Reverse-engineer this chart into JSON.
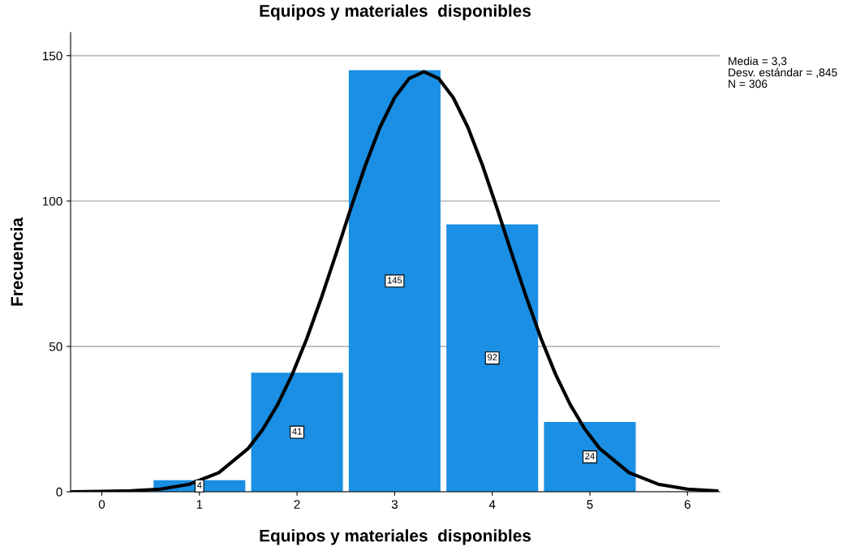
{
  "chart_data": {
    "type": "histogram",
    "title": "Equipos y materiales  disponibles",
    "xlabel": "Equipos y materiales  disponibles",
    "ylabel": "Frecuencia",
    "bins": [
      0.5,
      1.5,
      2.5,
      3.5,
      4.5,
      5.5
    ],
    "values": [
      4,
      41,
      145,
      92,
      24
    ],
    "color": "#1a8fe3",
    "value_labels": [
      "4",
      "41",
      "145",
      "92",
      "24"
    ],
    "series": [
      {
        "type": "line",
        "color": "#000000",
        "x": [
          -0.3,
          0,
          0.3,
          0.6,
          0.9,
          1.2,
          1.5,
          1.65,
          1.8,
          1.95,
          2.1,
          2.25,
          2.4,
          2.55,
          2.7,
          2.85,
          3.0,
          3.15,
          3.3,
          3.45,
          3.6,
          3.75,
          3.9,
          4.05,
          4.2,
          4.35,
          4.5,
          4.65,
          4.8,
          4.95,
          5.1,
          5.4,
          5.7,
          6.0,
          6.3
        ],
        "values": [
          0.0,
          0.1,
          0.3,
          0.9,
          2.6,
          6.6,
          14.9,
          21.5,
          29.9,
          40.3,
          52.7,
          66.8,
          81.9,
          97.4,
          112.3,
          125.4,
          135.6,
          142.2,
          144.5,
          142.2,
          135.6,
          125.4,
          112.3,
          97.4,
          81.9,
          66.8,
          52.7,
          40.3,
          29.9,
          21.5,
          14.9,
          6.6,
          2.6,
          0.9,
          0.3
        ]
      }
    ],
    "xlim": [
      -0.32,
      6.33
    ],
    "xticks": [
      0,
      1,
      2,
      3,
      4,
      5,
      6
    ],
    "ylim": [
      0,
      158
    ],
    "yticks": [
      0,
      50,
      100,
      150
    ],
    "grid": "y",
    "annotations": [
      "Media = 3,3",
      "Desv. estándar = ,845",
      "N = 306"
    ]
  }
}
